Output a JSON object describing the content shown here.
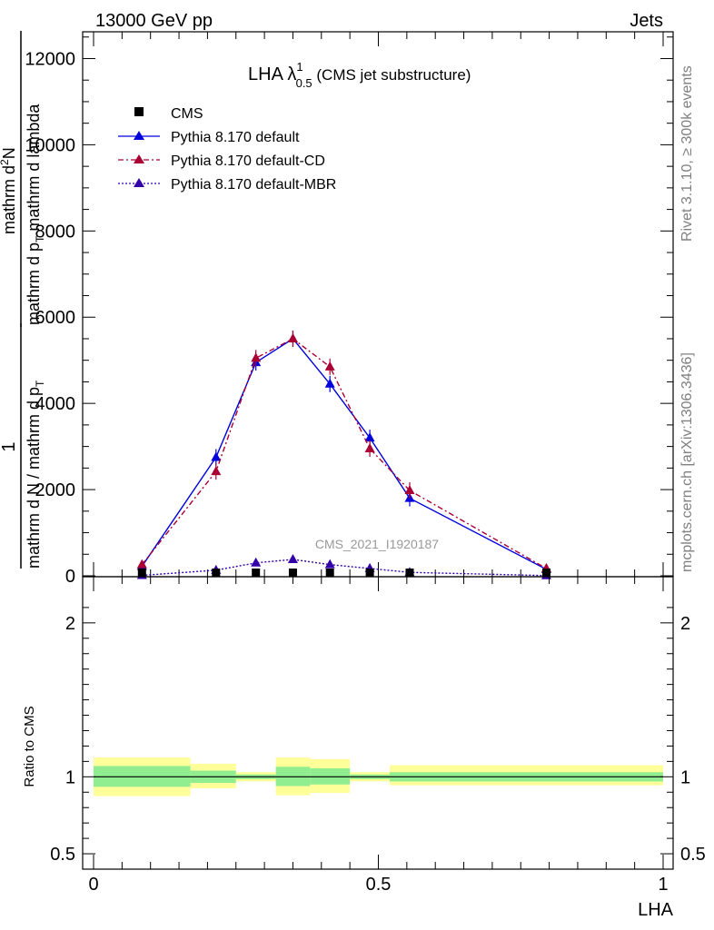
{
  "header": {
    "left": "13000 GeV pp",
    "right": "Jets"
  },
  "side_labels": {
    "rivet": "Rivet 3.1.10, ≥ 300k events",
    "mcplots": "mcplots.cern.ch [arXiv:1306.3436]"
  },
  "watermark": "CMS_2021_I1920187",
  "title": {
    "main": "LHA λ",
    "sup": "1",
    "sub": "0.5",
    "suffix": " (CMS jet substructure)"
  },
  "ylabel_top": {
    "numerator_1": "1",
    "denominator_1": "mathrm d N / mathrm d p",
    "sub_1": "T",
    "numerator_2": "mathrm d",
    "sup_2": "2",
    "numerator_2b": "N",
    "denominator_2": "mathrm d p",
    "sub_2": "T",
    "denominator_2b": " mathrm d lambda"
  },
  "ylabel_bottom": "Ratio to CMS",
  "xlabel": "LHA",
  "legend": [
    {
      "label": "CMS",
      "color": "#000000",
      "style": "marker"
    },
    {
      "label": "Pythia 8.170 default",
      "color": "#0000dd",
      "style": "solid"
    },
    {
      "label": "Pythia 8.170 default-CD",
      "color": "#aa0033",
      "style": "dashdot"
    },
    {
      "label": "Pythia 8.170 default-MBR",
      "color": "#3300aa",
      "style": "dotted"
    }
  ],
  "chart_data": {
    "type": "line",
    "xlim": [
      0,
      1
    ],
    "ylim_main": [
      0,
      12600
    ],
    "ylim_ratio": [
      0.4,
      2.3
    ],
    "main_yticks": [
      "0",
      "2000",
      "4000",
      "6000",
      "8000",
      "10000",
      "12000"
    ],
    "main_ytick_values": [
      0,
      2000,
      4000,
      6000,
      8000,
      10000,
      12000
    ],
    "ratio_yticks": [
      "0.5",
      "1",
      "2"
    ],
    "ratio_ytick_values": [
      0.5,
      1,
      2
    ],
    "xticks": [
      "0",
      "0.5",
      "1"
    ],
    "xtick_values": [
      0,
      0.5,
      1
    ],
    "cms": {
      "x": [
        0.085,
        0.215,
        0.285,
        0.35,
        0.415,
        0.485,
        0.555,
        0.795
      ],
      "y": [
        5,
        5,
        5,
        5,
        5,
        5,
        5,
        5
      ]
    },
    "series": [
      {
        "name": "Pythia 8.170 default",
        "color": "#0000dd",
        "dash": "",
        "x": [
          0.085,
          0.215,
          0.285,
          0.35,
          0.415,
          0.485,
          0.555,
          0.795
        ],
        "y": [
          220,
          2750,
          4950,
          5500,
          4450,
          3200,
          1800,
          150
        ]
      },
      {
        "name": "Pythia 8.170 default-CD",
        "color": "#aa0033",
        "dash": "6,3,2,3",
        "x": [
          0.085,
          0.215,
          0.285,
          0.35,
          0.415,
          0.485,
          0.555,
          0.795
        ],
        "y": [
          260,
          2420,
          5050,
          5500,
          4850,
          2950,
          1980,
          170
        ]
      },
      {
        "name": "Pythia 8.170 default-MBR",
        "color": "#3300aa",
        "dash": "2,2",
        "x": [
          0.085,
          0.215,
          0.285,
          0.35,
          0.415,
          0.485,
          0.555,
          0.795
        ],
        "y": [
          10,
          130,
          300,
          380,
          260,
          170,
          80,
          5
        ]
      }
    ],
    "ratio_bands": [
      {
        "x0": 0.0,
        "x1": 0.17,
        "inner": [
          0.935,
          1.07
        ],
        "outer": [
          0.875,
          1.125
        ]
      },
      {
        "x0": 0.17,
        "x1": 0.25,
        "inner": [
          0.96,
          1.04
        ],
        "outer": [
          0.925,
          1.085
        ]
      },
      {
        "x0": 0.25,
        "x1": 0.32,
        "inner": [
          0.985,
          1.015
        ],
        "outer": [
          0.97,
          1.03
        ]
      },
      {
        "x0": 0.32,
        "x1": 0.38,
        "inner": [
          0.94,
          1.065
        ],
        "outer": [
          0.88,
          1.125
        ]
      },
      {
        "x0": 0.38,
        "x1": 0.45,
        "inner": [
          0.95,
          1.055
        ],
        "outer": [
          0.895,
          1.115
        ]
      },
      {
        "x0": 0.45,
        "x1": 0.52,
        "inner": [
          0.985,
          1.015
        ],
        "outer": [
          0.97,
          1.03
        ]
      },
      {
        "x0": 0.52,
        "x1": 1.0,
        "inner": [
          0.97,
          1.03
        ],
        "outer": [
          0.945,
          1.075
        ]
      }
    ]
  },
  "colors": {
    "band_inner": "#90ee90",
    "band_outer": "#ffff99"
  }
}
